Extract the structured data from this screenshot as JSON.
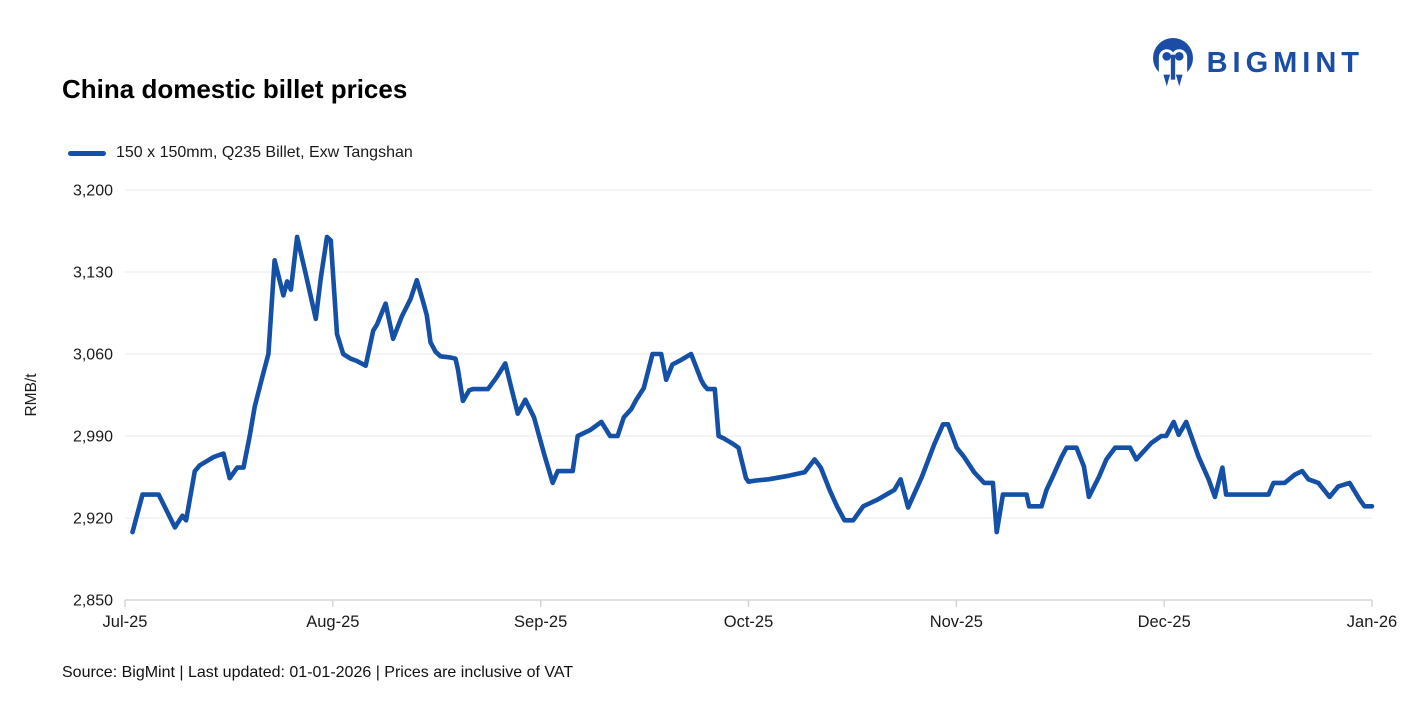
{
  "page": {
    "title": "China domestic billet prices"
  },
  "logo": {
    "text": "BIGMINT",
    "icon": "bigmint-people-in-circle-icon",
    "color": "#1B4DA6"
  },
  "legend": {
    "series_label": "150 x 150mm, Q235 Billet, Exw Tangshan"
  },
  "footer": {
    "text": "Source: BigMint | Last updated: 01-01-2026 | Prices are inclusive of VAT"
  },
  "chart_data": {
    "type": "line",
    "title": "China domestic billet prices",
    "series_name": "150 x 150mm, Q235 Billet, Exw Tangshan",
    "ylabel": "RMB/t",
    "ylim": [
      2850,
      3200
    ],
    "yticks": [
      2850,
      2920,
      2990,
      3060,
      3130,
      3200
    ],
    "ytick_labels": [
      "2,850",
      "2,920",
      "2,990",
      "3,060",
      "3,130",
      "3,200"
    ],
    "xtick_labels": [
      "Jul-25",
      "Aug-25",
      "Sep-25",
      "Oct-25",
      "Nov-25",
      "Dec-25",
      "Jan-26"
    ],
    "x_axis": {
      "start": "Jul-25",
      "end": "Jan-26",
      "x_is_fraction_of_axis": true
    },
    "grid": true,
    "legend_position": "top-left",
    "line_color": "#1450A6",
    "points": [
      [
        0.006,
        2908
      ],
      [
        0.014,
        2940
      ],
      [
        0.027,
        2940
      ],
      [
        0.04,
        2912
      ],
      [
        0.046,
        2922
      ],
      [
        0.049,
        2918
      ],
      [
        0.056,
        2960
      ],
      [
        0.06,
        2965
      ],
      [
        0.071,
        2972
      ],
      [
        0.079,
        2975
      ],
      [
        0.084,
        2954
      ],
      [
        0.09,
        2963
      ],
      [
        0.095,
        2963
      ],
      [
        0.1,
        2990
      ],
      [
        0.104,
        3015
      ],
      [
        0.11,
        3040
      ],
      [
        0.115,
        3060
      ],
      [
        0.12,
        3140
      ],
      [
        0.127,
        3110
      ],
      [
        0.13,
        3122
      ],
      [
        0.133,
        3115
      ],
      [
        0.138,
        3160
      ],
      [
        0.145,
        3128
      ],
      [
        0.153,
        3090
      ],
      [
        0.157,
        3125
      ],
      [
        0.162,
        3160
      ],
      [
        0.165,
        3157
      ],
      [
        0.17,
        3077
      ],
      [
        0.175,
        3060
      ],
      [
        0.181,
        3056
      ],
      [
        0.186,
        3054
      ],
      [
        0.193,
        3050
      ],
      [
        0.199,
        3080
      ],
      [
        0.202,
        3085
      ],
      [
        0.209,
        3103
      ],
      [
        0.215,
        3073
      ],
      [
        0.222,
        3092
      ],
      [
        0.229,
        3107
      ],
      [
        0.234,
        3123
      ],
      [
        0.239,
        3105
      ],
      [
        0.242,
        3093
      ],
      [
        0.245,
        3070
      ],
      [
        0.249,
        3062
      ],
      [
        0.253,
        3058
      ],
      [
        0.261,
        3057
      ],
      [
        0.265,
        3056
      ],
      [
        0.267,
        3047
      ],
      [
        0.271,
        3020
      ],
      [
        0.276,
        3029
      ],
      [
        0.279,
        3030
      ],
      [
        0.291,
        3030
      ],
      [
        0.298,
        3040
      ],
      [
        0.305,
        3052
      ],
      [
        0.31,
        3030
      ],
      [
        0.315,
        3009
      ],
      [
        0.321,
        3021
      ],
      [
        0.328,
        3006
      ],
      [
        0.336,
        2975
      ],
      [
        0.343,
        2950
      ],
      [
        0.347,
        2960
      ],
      [
        0.359,
        2960
      ],
      [
        0.363,
        2990
      ],
      [
        0.373,
        2995
      ],
      [
        0.382,
        3002
      ],
      [
        0.389,
        2990
      ],
      [
        0.395,
        2990
      ],
      [
        0.4,
        3006
      ],
      [
        0.406,
        3013
      ],
      [
        0.41,
        3021
      ],
      [
        0.416,
        3031
      ],
      [
        0.423,
        3060
      ],
      [
        0.43,
        3060
      ],
      [
        0.434,
        3038
      ],
      [
        0.439,
        3051
      ],
      [
        0.446,
        3055
      ],
      [
        0.454,
        3060
      ],
      [
        0.462,
        3038
      ],
      [
        0.464,
        3034
      ],
      [
        0.467,
        3030
      ],
      [
        0.473,
        3030
      ],
      [
        0.476,
        2990
      ],
      [
        0.48,
        2988
      ],
      [
        0.488,
        2983
      ],
      [
        0.492,
        2980
      ],
      [
        0.498,
        2954
      ],
      [
        0.5,
        2951
      ],
      [
        0.506,
        2952
      ],
      [
        0.516,
        2953
      ],
      [
        0.532,
        2956
      ],
      [
        0.545,
        2959
      ],
      [
        0.553,
        2970
      ],
      [
        0.558,
        2963
      ],
      [
        0.565,
        2944
      ],
      [
        0.571,
        2930
      ],
      [
        0.577,
        2918
      ],
      [
        0.584,
        2918
      ],
      [
        0.592,
        2930
      ],
      [
        0.604,
        2936
      ],
      [
        0.617,
        2944
      ],
      [
        0.622,
        2953
      ],
      [
        0.628,
        2929
      ],
      [
        0.639,
        2955
      ],
      [
        0.649,
        2983
      ],
      [
        0.656,
        3000
      ],
      [
        0.66,
        3000
      ],
      [
        0.667,
        2980
      ],
      [
        0.673,
        2972
      ],
      [
        0.681,
        2959
      ],
      [
        0.689,
        2950
      ],
      [
        0.696,
        2950
      ],
      [
        0.699,
        2908
      ],
      [
        0.704,
        2940
      ],
      [
        0.723,
        2940
      ],
      [
        0.725,
        2930
      ],
      [
        0.735,
        2930
      ],
      [
        0.739,
        2944
      ],
      [
        0.743,
        2953
      ],
      [
        0.751,
        2972
      ],
      [
        0.755,
        2980
      ],
      [
        0.763,
        2980
      ],
      [
        0.769,
        2964
      ],
      [
        0.773,
        2938
      ],
      [
        0.781,
        2955
      ],
      [
        0.787,
        2970
      ],
      [
        0.794,
        2980
      ],
      [
        0.806,
        2980
      ],
      [
        0.811,
        2970
      ],
      [
        0.817,
        2977
      ],
      [
        0.823,
        2984
      ],
      [
        0.831,
        2990
      ],
      [
        0.835,
        2990
      ],
      [
        0.841,
        3002
      ],
      [
        0.845,
        2991
      ],
      [
        0.851,
        3002
      ],
      [
        0.861,
        2972
      ],
      [
        0.869,
        2953
      ],
      [
        0.874,
        2938
      ],
      [
        0.88,
        2963
      ],
      [
        0.883,
        2940
      ],
      [
        0.917,
        2940
      ],
      [
        0.921,
        2950
      ],
      [
        0.93,
        2950
      ],
      [
        0.938,
        2957
      ],
      [
        0.944,
        2960
      ],
      [
        0.949,
        2953
      ],
      [
        0.957,
        2950
      ],
      [
        0.966,
        2938
      ],
      [
        0.973,
        2947
      ],
      [
        0.982,
        2950
      ],
      [
        0.99,
        2936
      ],
      [
        0.994,
        2930
      ],
      [
        1.0,
        2930
      ]
    ]
  }
}
